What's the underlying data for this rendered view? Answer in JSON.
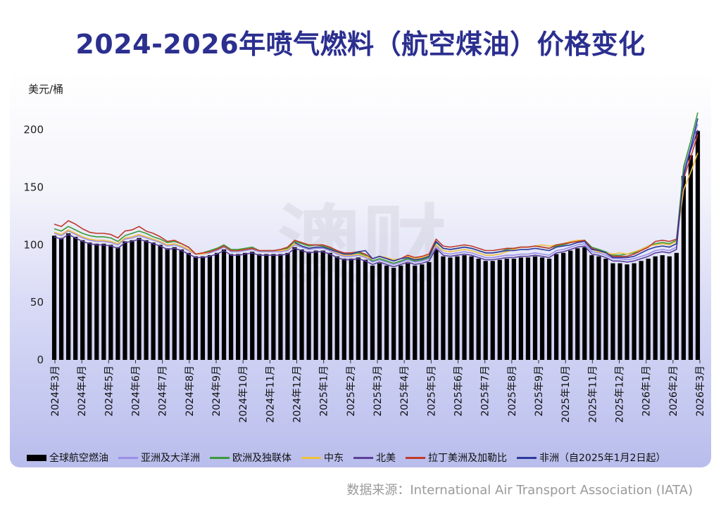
{
  "title": "2024-2026年喷气燃料（航空煤油）价格变化",
  "source": "数据来源：International Air Transport Association (IATA)",
  "watermark": "澳财",
  "colors": {
    "bar": "#000000",
    "title": "#2b2f8f"
  },
  "chart_data": {
    "type": "bar",
    "ylabel": "美元/桶",
    "ylim": [
      0,
      220
    ],
    "yticks": [
      0,
      50,
      100,
      150,
      200
    ],
    "grid": false,
    "legend_position": "bottom",
    "x_tick_labels": [
      "2024年3月",
      "2024年4月",
      "2024年5月",
      "2024年6月",
      "2024年7月",
      "2024年8月",
      "2024年9月",
      "2024年10月",
      "2024年11月",
      "2024年12月",
      "2025年1月",
      "2025年2月",
      "2025年3月",
      "2025年4月",
      "2025年5月",
      "2025年6月",
      "2025年7月",
      "2025年8月",
      "2025年9月",
      "2025年10月",
      "2025年11月",
      "2025年12月",
      "2026年1月",
      "2026年2月",
      "2026年3月"
    ],
    "bar_series": {
      "name": "全球航空燃油",
      "color": "#000000",
      "values": [
        108,
        106,
        110,
        107,
        104,
        102,
        101,
        101,
        100,
        98,
        103,
        104,
        106,
        104,
        102,
        100,
        97,
        98,
        96,
        93,
        90,
        90,
        91,
        93,
        96,
        92,
        92,
        93,
        94,
        92,
        92,
        92,
        92,
        93,
        98,
        96,
        94,
        95,
        95,
        93,
        90,
        88,
        88,
        89,
        87,
        82,
        84,
        82,
        80,
        82,
        84,
        82,
        83,
        85,
        96,
        90,
        89,
        90,
        91,
        90,
        88,
        86,
        86,
        87,
        88,
        88,
        89,
        89,
        90,
        89,
        88,
        92,
        93,
        95,
        97,
        98,
        91,
        90,
        88,
        84,
        84,
        83,
        84,
        86,
        88,
        90,
        91,
        90,
        93,
        160,
        178,
        199
      ]
    },
    "line_series": [
      {
        "name": "亚洲及大洋洲",
        "color": "#9b8fe8",
        "values": [
          110,
          108,
          112,
          109,
          106,
          104,
          103,
          103,
          102,
          100,
          105,
          106,
          108,
          106,
          104,
          102,
          99,
          100,
          98,
          95,
          92,
          92,
          93,
          95,
          98,
          94,
          94,
          95,
          96,
          94,
          94,
          94,
          94,
          95,
          100,
          98,
          96,
          97,
          97,
          95,
          92,
          90,
          90,
          91,
          89,
          85,
          87,
          85,
          83,
          85,
          87,
          85,
          86,
          88,
          99,
          93,
          92,
          93,
          94,
          93,
          91,
          89,
          89,
          90,
          91,
          91,
          92,
          92,
          93,
          92,
          91,
          95,
          96,
          98,
          100,
          101,
          94,
          93,
          91,
          88,
          88,
          87,
          88,
          90,
          92,
          95,
          96,
          95,
          98,
          165,
          185,
          205
        ]
      },
      {
        "name": "欧洲及独联体",
        "color": "#3a9b3a",
        "values": [
          114,
          112,
          116,
          113,
          110,
          108,
          107,
          107,
          106,
          103,
          108,
          110,
          112,
          110,
          107,
          105,
          102,
          103,
          101,
          98,
          92,
          93,
          95,
          97,
          100,
          96,
          96,
          97,
          98,
          95,
          95,
          95,
          96,
          97,
          103,
          101,
          99,
          100,
          99,
          97,
          94,
          92,
          92,
          93,
          91,
          86,
          88,
          86,
          84,
          86,
          88,
          86,
          87,
          89,
          102,
          97,
          96,
          97,
          98,
          97,
          95,
          93,
          93,
          94,
          96,
          97,
          98,
          98,
          99,
          98,
          97,
          99,
          100,
          102,
          103,
          104,
          98,
          96,
          94,
          91,
          91,
          92,
          93,
          96,
          99,
          101,
          102,
          101,
          104,
          168,
          190,
          215
        ]
      },
      {
        "name": "中东",
        "color": "#f0c040",
        "values": [
          111,
          109,
          113,
          110,
          107,
          105,
          104,
          104,
          103,
          101,
          106,
          107,
          109,
          107,
          105,
          103,
          100,
          101,
          99,
          96,
          92,
          92,
          94,
          96,
          99,
          95,
          95,
          96,
          97,
          95,
          95,
          95,
          95,
          96,
          101,
          99,
          97,
          98,
          98,
          96,
          93,
          91,
          91,
          92,
          90,
          88,
          90,
          89,
          87,
          88,
          90,
          88,
          89,
          91,
          100,
          95,
          94,
          95,
          96,
          95,
          93,
          91,
          91,
          92,
          94,
          96,
          98,
          98,
          99,
          100,
          99,
          100,
          101,
          103,
          104,
          104,
          96,
          94,
          93,
          92,
          93,
          92,
          94,
          96,
          99,
          100,
          101,
          100,
          103,
          148,
          163,
          180
        ]
      },
      {
        "name": "北美",
        "color": "#5a3f9a",
        "values": [
          107,
          105,
          109,
          106,
          103,
          101,
          100,
          100,
          99,
          97,
          102,
          103,
          105,
          103,
          101,
          99,
          96,
          97,
          95,
          92,
          89,
          89,
          90,
          92,
          95,
          91,
          91,
          92,
          93,
          91,
          91,
          91,
          91,
          92,
          97,
          95,
          93,
          94,
          94,
          92,
          89,
          87,
          87,
          88,
          86,
          83,
          85,
          83,
          81,
          83,
          85,
          83,
          84,
          86,
          97,
          91,
          90,
          91,
          92,
          91,
          89,
          87,
          87,
          88,
          89,
          89,
          90,
          90,
          91,
          90,
          89,
          93,
          94,
          96,
          98,
          99,
          92,
          91,
          89,
          86,
          86,
          85,
          86,
          88,
          90,
          93,
          94,
          93,
          96,
          162,
          182,
          200
        ]
      },
      {
        "name": "拉丁美洲及加勒比",
        "color": "#c0392b",
        "values": [
          118,
          116,
          121,
          118,
          114,
          111,
          110,
          110,
          109,
          106,
          112,
          113,
          116,
          112,
          110,
          107,
          103,
          104,
          101,
          98,
          92,
          93,
          94,
          96,
          99,
          95,
          95,
          96,
          97,
          95,
          95,
          95,
          96,
          98,
          104,
          102,
          100,
          100,
          100,
          98,
          95,
          93,
          93,
          94,
          92,
          88,
          90,
          88,
          86,
          88,
          91,
          89,
          90,
          92,
          105,
          99,
          98,
          99,
          100,
          99,
          97,
          95,
          95,
          96,
          97,
          97,
          98,
          98,
          99,
          98,
          97,
          100,
          101,
          102,
          103,
          104,
          97,
          95,
          93,
          90,
          90,
          90,
          92,
          95,
          98,
          103,
          104,
          103,
          105,
          158,
          176,
          196
        ]
      },
      {
        "name": "非洲（自2025年1月2日起）",
        "color": "#2b3a9b",
        "values": [
          null,
          null,
          null,
          null,
          null,
          null,
          null,
          null,
          null,
          null,
          null,
          null,
          null,
          null,
          null,
          null,
          null,
          null,
          null,
          null,
          null,
          null,
          null,
          null,
          null,
          null,
          null,
          null,
          null,
          null,
          null,
          null,
          null,
          null,
          102,
          99,
          97,
          98,
          98,
          96,
          94,
          92,
          92,
          94,
          95,
          88,
          90,
          88,
          86,
          88,
          89,
          87,
          88,
          90,
          103,
          97,
          96,
          97,
          98,
          97,
          95,
          93,
          93,
          94,
          95,
          95,
          96,
          96,
          97,
          96,
          95,
          98,
          99,
          100,
          102,
          103,
          96,
          95,
          93,
          89,
          89,
          89,
          90,
          93,
          96,
          98,
          99,
          98,
          101,
          160,
          184,
          210
        ]
      }
    ]
  }
}
